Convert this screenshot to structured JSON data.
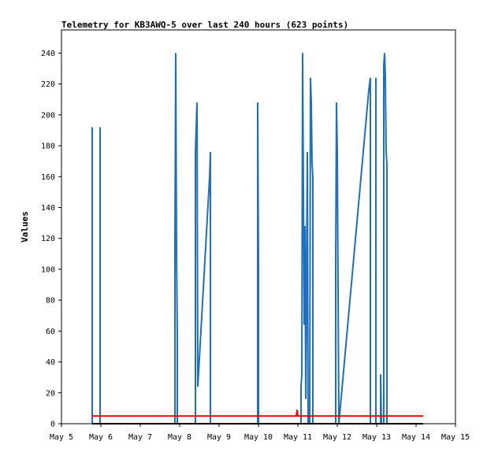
{
  "chart_data": {
    "type": "line",
    "title": "Telemetry for KB3AWQ-5 over last 240 hours (623 points)",
    "xlabel": "",
    "ylabel": "Values",
    "x_tick_labels": [
      "May 5",
      "May 6",
      "May 7",
      "May 8",
      "May 9",
      "May 10",
      "May 11",
      "May 12",
      "May 13",
      "May 14",
      "May 15"
    ],
    "xlim": [
      0,
      10
    ],
    "y_ticks": [
      0,
      20,
      40,
      60,
      80,
      100,
      120,
      140,
      160,
      180,
      200,
      220,
      240
    ],
    "ylim": [
      0,
      255
    ],
    "grid": false,
    "legend": "none",
    "series": [
      {
        "color": "#1f6fbf",
        "points": [
          [
            0.78,
            0
          ],
          [
            0.78,
            192
          ],
          [
            0.78,
            0
          ],
          [
            0.98,
            0
          ],
          [
            0.98,
            192
          ],
          [
            0.98,
            0
          ],
          [
            2.88,
            0
          ],
          [
            2.88,
            120
          ],
          [
            2.9,
            240
          ],
          [
            2.92,
            112
          ],
          [
            2.94,
            56
          ],
          [
            2.94,
            0
          ],
          [
            3.4,
            0
          ],
          [
            3.4,
            176
          ],
          [
            3.44,
            208
          ],
          [
            3.46,
            24
          ],
          [
            3.76,
            160
          ],
          [
            3.78,
            176
          ],
          [
            3.78,
            0
          ],
          [
            4.98,
            0
          ],
          [
            4.98,
            208
          ],
          [
            5.0,
            104
          ],
          [
            5.0,
            0
          ],
          [
            6.08,
            0
          ],
          [
            6.08,
            24
          ],
          [
            6.1,
            32
          ],
          [
            6.12,
            240
          ],
          [
            6.16,
            64
          ],
          [
            6.18,
            128
          ],
          [
            6.2,
            16
          ],
          [
            6.24,
            176
          ],
          [
            6.26,
            0
          ],
          [
            6.3,
            0
          ],
          [
            6.32,
            224
          ],
          [
            6.34,
            208
          ],
          [
            6.36,
            168
          ],
          [
            6.38,
            160
          ],
          [
            6.38,
            0
          ],
          [
            6.96,
            0
          ],
          [
            6.96,
            104
          ],
          [
            6.98,
            208
          ],
          [
            7.0,
            176
          ],
          [
            7.04,
            0
          ],
          [
            7.8,
            216
          ],
          [
            7.84,
            224
          ],
          [
            7.84,
            0
          ],
          [
            7.98,
            0
          ],
          [
            7.98,
            224
          ],
          [
            7.98,
            0
          ],
          [
            8.1,
            0
          ],
          [
            8.1,
            32
          ],
          [
            8.12,
            0
          ],
          [
            8.18,
            0
          ],
          [
            8.18,
            232
          ],
          [
            8.2,
            240
          ],
          [
            8.22,
            224
          ],
          [
            8.24,
            176
          ],
          [
            8.26,
            168
          ],
          [
            8.26,
            0
          ]
        ]
      },
      {
        "color": "#ff0000",
        "points": [
          [
            0.78,
            5
          ],
          [
            5.96,
            5
          ],
          [
            5.98,
            9
          ],
          [
            6.0,
            5
          ],
          [
            9.18,
            5
          ]
        ]
      },
      {
        "color": "#000000",
        "points": [
          [
            0.78,
            0
          ],
          [
            9.18,
            0
          ]
        ]
      }
    ]
  }
}
